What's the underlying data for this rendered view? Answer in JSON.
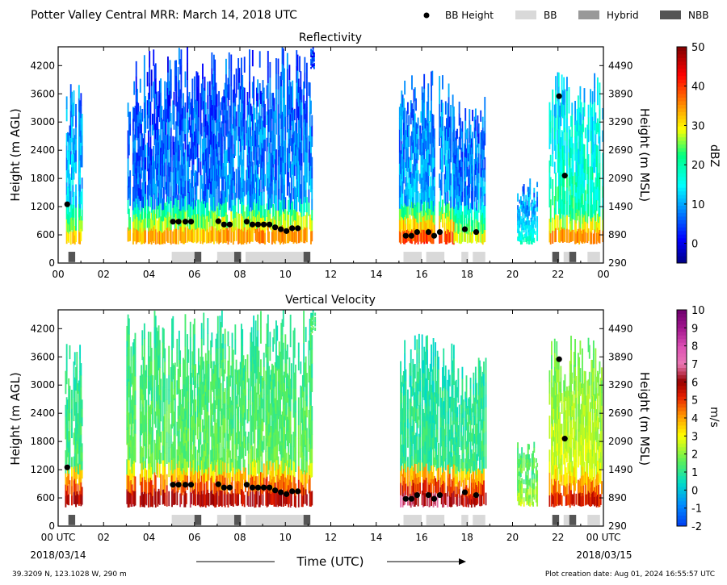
{
  "figure": {
    "title": "Potter Valley Central MRR:  March 14, 2018 UTC",
    "legend": [
      {
        "label": "BB Height",
        "kind": "dot",
        "color": "#000000"
      },
      {
        "label": "BB",
        "kind": "swatch",
        "color": "#d9d9d9"
      },
      {
        "label": "Hybrid",
        "kind": "swatch",
        "color": "#999999"
      },
      {
        "label": "NBB",
        "kind": "swatch",
        "color": "#555555"
      }
    ],
    "xlabel": "Time (UTC)",
    "start_date": "2018/03/14",
    "end_date": "2018/03/15",
    "location": "39.3209 N, 123.1028 W, 290 m",
    "creation": "Plot creation date: Aug 01, 2024 16:55:57 UTC"
  },
  "chart_data": [
    {
      "type": "heatmap",
      "title": "Reflectivity",
      "ylabel": "Height (m AGL)",
      "y2label": "Height (m MSL)",
      "colorbar_label": "dBZ",
      "xticks": [
        "00",
        "02",
        "04",
        "06",
        "08",
        "10",
        "12",
        "14",
        "16",
        "18",
        "20",
        "22",
        "00"
      ],
      "xlim": [
        0,
        24
      ],
      "ylim": [
        0,
        4600
      ],
      "yticks": [
        0,
        600,
        1200,
        1800,
        2400,
        3000,
        3600,
        4200
      ],
      "y2ticks": [
        290,
        890,
        1490,
        2090,
        2690,
        3290,
        3890,
        4490
      ],
      "colorbar": {
        "min": -5,
        "max": 50,
        "ticks": [
          0,
          10,
          20,
          30,
          40,
          50
        ]
      },
      "bb_height": [
        {
          "x": 0.4,
          "y": 1250
        },
        {
          "x": 5.05,
          "y": 880
        },
        {
          "x": 5.3,
          "y": 880
        },
        {
          "x": 5.6,
          "y": 880
        },
        {
          "x": 5.85,
          "y": 880
        },
        {
          "x": 7.05,
          "y": 890
        },
        {
          "x": 7.3,
          "y": 820
        },
        {
          "x": 7.55,
          "y": 820
        },
        {
          "x": 8.3,
          "y": 880
        },
        {
          "x": 8.55,
          "y": 820
        },
        {
          "x": 8.8,
          "y": 820
        },
        {
          "x": 9.05,
          "y": 820
        },
        {
          "x": 9.3,
          "y": 820
        },
        {
          "x": 9.55,
          "y": 760
        },
        {
          "x": 9.8,
          "y": 720
        },
        {
          "x": 10.05,
          "y": 680
        },
        {
          "x": 10.3,
          "y": 740
        },
        {
          "x": 10.55,
          "y": 740
        },
        {
          "x": 15.3,
          "y": 580
        },
        {
          "x": 15.55,
          "y": 580
        },
        {
          "x": 15.8,
          "y": 660
        },
        {
          "x": 16.3,
          "y": 660
        },
        {
          "x": 16.55,
          "y": 580
        },
        {
          "x": 16.8,
          "y": 660
        },
        {
          "x": 17.9,
          "y": 720
        },
        {
          "x": 18.4,
          "y": 660
        },
        {
          "x": 22.05,
          "y": 3550
        },
        {
          "x": 22.3,
          "y": 1860
        }
      ],
      "bb_type": [
        {
          "start": 0.45,
          "end": 0.75,
          "type": "NBB"
        },
        {
          "start": 5.0,
          "end": 6.0,
          "type": "BB"
        },
        {
          "start": 6.0,
          "end": 6.3,
          "type": "NBB"
        },
        {
          "start": 7.0,
          "end": 7.75,
          "type": "BB"
        },
        {
          "start": 7.75,
          "end": 8.05,
          "type": "NBB"
        },
        {
          "start": 8.25,
          "end": 10.8,
          "type": "BB"
        },
        {
          "start": 10.8,
          "end": 11.1,
          "type": "NBB"
        },
        {
          "start": 15.2,
          "end": 16.0,
          "type": "BB"
        },
        {
          "start": 16.2,
          "end": 17.0,
          "type": "BB"
        },
        {
          "start": 17.75,
          "end": 18.05,
          "type": "BB"
        },
        {
          "start": 18.25,
          "end": 18.8,
          "type": "BB"
        },
        {
          "start": 21.75,
          "end": 22.05,
          "type": "NBB"
        },
        {
          "start": 22.25,
          "end": 22.5,
          "type": "BB"
        },
        {
          "start": 22.5,
          "end": 22.8,
          "type": "NBB"
        },
        {
          "start": 23.3,
          "end": 23.85,
          "type": "BB"
        }
      ],
      "echo_regions": [
        {
          "x0": 0.3,
          "x1": 1.05,
          "ybase": 400,
          "ytop": 3900,
          "core": 32,
          "aloft": 14
        },
        {
          "x0": 3.0,
          "x1": 7.0,
          "ybase": 400,
          "ytop": 4600,
          "core": 34,
          "aloft": 8
        },
        {
          "x0": 7.0,
          "x1": 11.15,
          "ybase": 400,
          "ytop": 4600,
          "core": 36,
          "aloft": 10
        },
        {
          "x0": 11.1,
          "x1": 11.35,
          "ybase": 4100,
          "ytop": 4600,
          "core": 8,
          "aloft": 6
        },
        {
          "x0": 15.0,
          "x1": 17.4,
          "ybase": 400,
          "ytop": 4100,
          "core": 40,
          "aloft": 12
        },
        {
          "x0": 17.4,
          "x1": 18.8,
          "ybase": 400,
          "ytop": 3600,
          "core": 30,
          "aloft": 10
        },
        {
          "x0": 20.2,
          "x1": 21.1,
          "ybase": 400,
          "ytop": 1800,
          "core": 18,
          "aloft": 14
        },
        {
          "x0": 21.6,
          "x1": 24.0,
          "ybase": 400,
          "ytop": 4100,
          "core": 36,
          "aloft": 22
        }
      ]
    },
    {
      "type": "heatmap",
      "title": "Vertical Velocity",
      "ylabel": "Height (m AGL)",
      "y2label": "Height (m MSL)",
      "colorbar_label": "m/s",
      "xticks": [
        "00 UTC",
        "02",
        "04",
        "06",
        "08",
        "10",
        "12",
        "14",
        "16",
        "18",
        "20",
        "22",
        "00 UTC"
      ],
      "xlim": [
        0,
        24
      ],
      "ylim": [
        0,
        4600
      ],
      "yticks": [
        0,
        600,
        1200,
        1800,
        2400,
        3000,
        3600,
        4200
      ],
      "y2ticks": [
        290,
        890,
        1490,
        2090,
        2690,
        3290,
        3890,
        4490
      ],
      "colorbar": {
        "min": -2,
        "max": 10,
        "ticks": [
          -2,
          -1,
          0,
          1,
          2,
          3,
          4,
          5,
          6,
          7,
          8,
          9,
          10
        ]
      },
      "bb_height": [
        {
          "x": 0.4,
          "y": 1250
        },
        {
          "x": 5.05,
          "y": 880
        },
        {
          "x": 5.3,
          "y": 880
        },
        {
          "x": 5.6,
          "y": 880
        },
        {
          "x": 5.85,
          "y": 880
        },
        {
          "x": 7.05,
          "y": 890
        },
        {
          "x": 7.3,
          "y": 820
        },
        {
          "x": 7.55,
          "y": 820
        },
        {
          "x": 8.3,
          "y": 880
        },
        {
          "x": 8.55,
          "y": 820
        },
        {
          "x": 8.8,
          "y": 820
        },
        {
          "x": 9.05,
          "y": 820
        },
        {
          "x": 9.3,
          "y": 820
        },
        {
          "x": 9.55,
          "y": 760
        },
        {
          "x": 9.8,
          "y": 720
        },
        {
          "x": 10.05,
          "y": 680
        },
        {
          "x": 10.3,
          "y": 740
        },
        {
          "x": 10.55,
          "y": 740
        },
        {
          "x": 15.3,
          "y": 580
        },
        {
          "x": 15.55,
          "y": 580
        },
        {
          "x": 15.8,
          "y": 660
        },
        {
          "x": 16.3,
          "y": 660
        },
        {
          "x": 16.55,
          "y": 580
        },
        {
          "x": 16.8,
          "y": 660
        },
        {
          "x": 17.9,
          "y": 720
        },
        {
          "x": 18.4,
          "y": 660
        },
        {
          "x": 22.05,
          "y": 3550
        },
        {
          "x": 22.3,
          "y": 1860
        }
      ],
      "bb_type": [
        {
          "start": 0.45,
          "end": 0.75,
          "type": "NBB"
        },
        {
          "start": 5.0,
          "end": 6.0,
          "type": "BB"
        },
        {
          "start": 6.0,
          "end": 6.3,
          "type": "NBB"
        },
        {
          "start": 7.0,
          "end": 7.75,
          "type": "BB"
        },
        {
          "start": 7.75,
          "end": 8.05,
          "type": "NBB"
        },
        {
          "start": 8.25,
          "end": 10.8,
          "type": "BB"
        },
        {
          "start": 10.8,
          "end": 11.1,
          "type": "NBB"
        },
        {
          "start": 15.2,
          "end": 16.0,
          "type": "BB"
        },
        {
          "start": 16.2,
          "end": 17.0,
          "type": "BB"
        },
        {
          "start": 17.75,
          "end": 18.05,
          "type": "BB"
        },
        {
          "start": 18.25,
          "end": 18.8,
          "type": "BB"
        },
        {
          "start": 21.75,
          "end": 22.05,
          "type": "NBB"
        },
        {
          "start": 22.25,
          "end": 22.5,
          "type": "BB"
        },
        {
          "start": 22.5,
          "end": 22.8,
          "type": "NBB"
        },
        {
          "start": 23.3,
          "end": 23.85,
          "type": "BB"
        }
      ],
      "echo_regions": [
        {
          "x0": 0.3,
          "x1": 1.05,
          "ybase": 400,
          "ytop": 3900,
          "core": 6,
          "aloft": 1.5
        },
        {
          "x0": 3.0,
          "x1": 7.0,
          "ybase": 400,
          "ytop": 4600,
          "core": 6,
          "aloft": 1.8
        },
        {
          "x0": 7.0,
          "x1": 11.15,
          "ybase": 400,
          "ytop": 4600,
          "core": 6,
          "aloft": 1.8
        },
        {
          "x0": 11.1,
          "x1": 11.35,
          "ybase": 4100,
          "ytop": 4600,
          "core": 1.5,
          "aloft": 1.5
        },
        {
          "x0": 15.0,
          "x1": 17.4,
          "ybase": 400,
          "ytop": 4100,
          "core": 6.5,
          "aloft": 1.2
        },
        {
          "x0": 17.4,
          "x1": 18.8,
          "ybase": 400,
          "ytop": 3600,
          "core": 6,
          "aloft": 1.3
        },
        {
          "x0": 20.2,
          "x1": 21.1,
          "ybase": 400,
          "ytop": 1800,
          "core": 2.5,
          "aloft": 2.2
        },
        {
          "x0": 21.6,
          "x1": 24.0,
          "ybase": 400,
          "ytop": 4100,
          "core": 5.5,
          "aloft": 3.0
        }
      ]
    }
  ]
}
